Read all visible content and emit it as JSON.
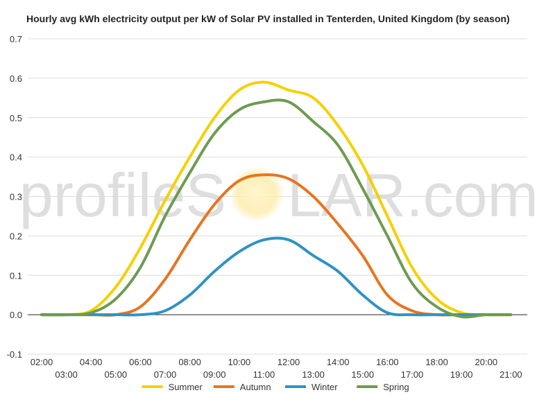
{
  "chart_data": {
    "type": "line",
    "title": "Hourly avg kWh electricity output per kW of Solar PV installed in Tenterden, United Kingdom (by season)",
    "xlabel": "",
    "ylabel": "",
    "x": [
      "02:00",
      "03:00",
      "04:00",
      "05:00",
      "06:00",
      "07:00",
      "08:00",
      "09:00",
      "10:00",
      "11:00",
      "12:00",
      "13:00",
      "14:00",
      "15:00",
      "16:00",
      "17:00",
      "18:00",
      "19:00",
      "20:00",
      "21:00"
    ],
    "ylim": [
      -0.1,
      0.7
    ],
    "yticks": [
      "-0.1",
      "0.0",
      "0.1",
      "0.2",
      "0.3",
      "0.4",
      "0.5",
      "0.6",
      "0.7"
    ],
    "grid": true,
    "legend_position": "bottom",
    "series": [
      {
        "name": "Summer",
        "color": "#f5d000",
        "values": [
          0.0,
          0.0,
          0.01,
          0.07,
          0.17,
          0.29,
          0.4,
          0.5,
          0.57,
          0.59,
          0.57,
          0.55,
          0.48,
          0.38,
          0.25,
          0.12,
          0.04,
          0.005,
          0.0,
          0.0
        ]
      },
      {
        "name": "Autumn",
        "color": "#e8741e",
        "values": [
          0.0,
          0.0,
          0.0,
          0.0,
          0.02,
          0.09,
          0.19,
          0.28,
          0.34,
          0.355,
          0.345,
          0.3,
          0.23,
          0.15,
          0.05,
          0.01,
          0.0,
          0.0,
          0.0,
          0.0
        ]
      },
      {
        "name": "Winter",
        "color": "#2e93c2",
        "values": [
          0.0,
          0.0,
          0.0,
          0.0,
          0.0,
          0.01,
          0.05,
          0.11,
          0.16,
          0.19,
          0.19,
          0.15,
          0.11,
          0.05,
          0.005,
          0.0,
          0.0,
          0.0,
          0.0,
          0.0
        ]
      },
      {
        "name": "Spring",
        "color": "#6e9a50",
        "values": [
          0.0,
          0.0,
          0.005,
          0.04,
          0.12,
          0.25,
          0.36,
          0.46,
          0.52,
          0.54,
          0.54,
          0.49,
          0.43,
          0.32,
          0.2,
          0.08,
          0.02,
          -0.005,
          0.0,
          0.0
        ]
      }
    ],
    "watermark": {
      "text_left": "profileS",
      "text_right": "LAR.com"
    }
  }
}
